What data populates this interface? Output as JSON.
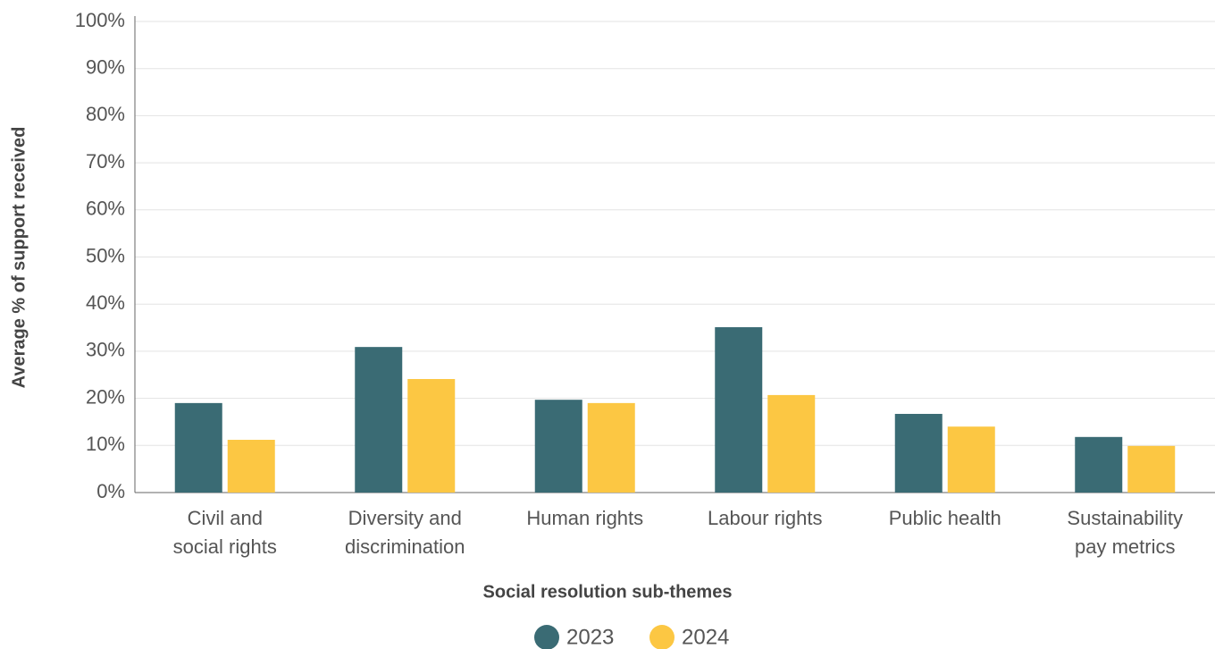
{
  "chart_data": {
    "type": "bar",
    "x_label": "Social resolution sub-themes",
    "y_label": "Average % of support received",
    "categories": [
      [
        "Civil and",
        "social rights"
      ],
      [
        "Diversity and",
        "discrimination"
      ],
      [
        "Human rights"
      ],
      [
        "Labour rights"
      ],
      [
        "Public health"
      ],
      [
        "Sustainability",
        "pay metrics"
      ]
    ],
    "series": [
      {
        "name": "2023",
        "color": "#3a6b74",
        "values": [
          19.0,
          30.9,
          19.7,
          35.1,
          16.7,
          11.8
        ]
      },
      {
        "name": "2024",
        "color": "#fcc743",
        "values": [
          11.2,
          24.1,
          19.0,
          20.7,
          14.0,
          9.9
        ]
      }
    ],
    "ylim": [
      0,
      100
    ],
    "yticks": [
      {
        "value": 0,
        "label": "0%"
      },
      {
        "value": 10,
        "label": "10%"
      },
      {
        "value": 20,
        "label": "20%"
      },
      {
        "value": 30,
        "label": "30%"
      },
      {
        "value": 40,
        "label": "40%"
      },
      {
        "value": 50,
        "label": "50%"
      },
      {
        "value": 60,
        "label": "60%"
      },
      {
        "value": 70,
        "label": "70%"
      },
      {
        "value": 80,
        "label": "80%"
      },
      {
        "value": 90,
        "label": "90%"
      },
      {
        "value": 100,
        "label": "100%"
      }
    ],
    "grid": true
  }
}
